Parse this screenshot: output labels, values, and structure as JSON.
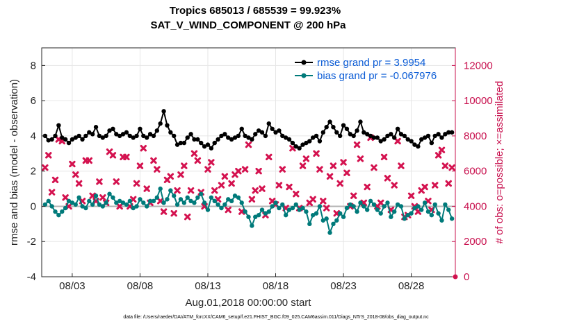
{
  "chart_data": {
    "type": "line",
    "title": "Tropics 685013 / 685539 = 99.923%",
    "subtitle": "SAT_V_WIND_COMPONENT @ 200 hPa",
    "xlabel": "Aug.01,2018 00:00:00 start",
    "ylabel": "rmse and bias (model - observation)",
    "ylabel_right": "# of obs: o=possible; ×=assimilated",
    "footnote": "data file: /Users/raeder/DAI/ATM_forcXX/CAM6_setup/f.e21.FHIST_BGC.f09_025.CAM6assim.011/Diags_NTrS_2018-08/obs_diag_output.nc",
    "xlim": [
      0.75,
      31.25
    ],
    "ylim": [
      -4,
      9
    ],
    "ylim_right": [
      0,
      13000
    ],
    "x_ticks": [
      3,
      8,
      13,
      18,
      23,
      28
    ],
    "x_tick_labels": [
      "08/03",
      "08/08",
      "08/13",
      "08/18",
      "08/23",
      "08/28"
    ],
    "y_ticks": [
      -4,
      -2,
      0,
      2,
      4,
      6,
      8
    ],
    "y_ticks_right": [
      0,
      2000,
      4000,
      6000,
      8000,
      10000,
      12000
    ],
    "grid": true,
    "legend_position": "top-right",
    "colors": {
      "rmse": "#000000",
      "bias": "#007a7a",
      "obs": "#d4124f",
      "zero_line": "#b3b3b3",
      "legend_text": "#0b5cd6",
      "right_axis": "#c8104e"
    },
    "series": [
      {
        "name": "rmse grand pr = 3.9954",
        "axis": "left",
        "x": [
          1.0,
          1.25,
          1.5,
          1.75,
          2.0,
          2.25,
          2.5,
          2.75,
          3.0,
          3.25,
          3.5,
          3.75,
          4.0,
          4.25,
          4.5,
          4.75,
          5.0,
          5.25,
          5.5,
          5.75,
          6.0,
          6.25,
          6.5,
          6.75,
          7.0,
          7.25,
          7.5,
          7.75,
          8.0,
          8.25,
          8.5,
          8.75,
          9.0,
          9.25,
          9.5,
          9.75,
          10.0,
          10.25,
          10.5,
          10.75,
          11.0,
          11.25,
          11.5,
          11.75,
          12.0,
          12.25,
          12.5,
          12.75,
          13.0,
          13.25,
          13.5,
          13.75,
          14.0,
          14.25,
          14.5,
          14.75,
          15.0,
          15.25,
          15.5,
          15.75,
          16.0,
          16.25,
          16.5,
          16.75,
          17.0,
          17.25,
          17.5,
          17.75,
          18.0,
          18.25,
          18.5,
          18.75,
          19.0,
          19.25,
          19.5,
          19.75,
          20.0,
          20.25,
          20.5,
          20.75,
          21.0,
          21.25,
          21.5,
          21.75,
          22.0,
          22.25,
          22.5,
          22.75,
          23.0,
          23.25,
          23.5,
          23.75,
          24.0,
          24.25,
          24.5,
          24.75,
          25.0,
          25.25,
          25.5,
          25.75,
          26.0,
          26.25,
          26.5,
          26.75,
          27.0,
          27.25,
          27.5,
          27.75,
          28.0,
          28.25,
          28.5,
          28.75,
          29.0,
          29.25,
          29.5,
          29.75,
          30.0,
          30.25,
          30.5,
          30.75,
          31.0
        ],
        "values": [
          4.0,
          3.75,
          3.8,
          4.0,
          4.6,
          3.9,
          3.8,
          3.6,
          3.8,
          3.9,
          4.0,
          3.8,
          4.0,
          4.2,
          4.1,
          4.5,
          4.0,
          3.9,
          4.0,
          4.3,
          4.4,
          4.1,
          4.0,
          4.1,
          4.2,
          4.0,
          3.9,
          4.0,
          4.4,
          4.0,
          3.9,
          4.1,
          4.0,
          4.3,
          4.7,
          5.4,
          4.6,
          4.2,
          4.0,
          3.5,
          3.6,
          3.6,
          3.9,
          4.1,
          3.8,
          3.8,
          3.6,
          3.4,
          3.5,
          3.3,
          3.6,
          3.8,
          4.0,
          4.1,
          3.9,
          3.8,
          3.9,
          4.0,
          4.4,
          4.0,
          3.9,
          3.8,
          4.1,
          4.3,
          4.2,
          4.0,
          4.7,
          4.4,
          4.2,
          4.3,
          4.0,
          3.9,
          3.8,
          3.6,
          3.4,
          3.3,
          3.5,
          3.6,
          3.7,
          3.9,
          4.0,
          3.7,
          4.2,
          4.5,
          4.8,
          4.5,
          4.2,
          4.0,
          4.6,
          4.4,
          4.1,
          4.0,
          4.3,
          4.8,
          4.2,
          4.1,
          4.0,
          3.9,
          3.9,
          3.7,
          3.8,
          4.0,
          4.1,
          3.9,
          4.4,
          4.1,
          4.0,
          3.8,
          3.7,
          3.5,
          3.4,
          3.8,
          3.9,
          4.0,
          3.6,
          4.0,
          4.1,
          3.9,
          4.1,
          4.2,
          4.2
        ]
      },
      {
        "name": "bias grand pr = -0.067976",
        "axis": "left",
        "x": [
          1.0,
          1.25,
          1.5,
          1.75,
          2.0,
          2.25,
          2.5,
          2.75,
          3.0,
          3.25,
          3.5,
          3.75,
          4.0,
          4.25,
          4.5,
          4.75,
          5.0,
          5.25,
          5.5,
          5.75,
          6.0,
          6.25,
          6.5,
          6.75,
          7.0,
          7.25,
          7.5,
          7.75,
          8.0,
          8.25,
          8.5,
          8.75,
          9.0,
          9.25,
          9.5,
          9.75,
          10.0,
          10.25,
          10.5,
          10.75,
          11.0,
          11.25,
          11.5,
          11.75,
          12.0,
          12.25,
          12.5,
          12.75,
          13.0,
          13.25,
          13.5,
          13.75,
          14.0,
          14.25,
          14.5,
          14.75,
          15.0,
          15.25,
          15.5,
          15.75,
          16.0,
          16.25,
          16.5,
          16.75,
          17.0,
          17.25,
          17.5,
          17.75,
          18.0,
          18.25,
          18.5,
          18.75,
          19.0,
          19.25,
          19.5,
          19.75,
          20.0,
          20.25,
          20.5,
          20.75,
          21.0,
          21.25,
          21.5,
          21.75,
          22.0,
          22.25,
          22.5,
          22.75,
          23.0,
          23.25,
          23.5,
          23.75,
          24.0,
          24.25,
          24.5,
          24.75,
          25.0,
          25.25,
          25.5,
          25.75,
          26.0,
          26.25,
          26.5,
          26.75,
          27.0,
          27.25,
          27.5,
          27.75,
          28.0,
          28.25,
          28.5,
          28.75,
          29.0,
          29.25,
          29.5,
          29.75,
          30.0,
          30.25,
          30.5,
          30.75,
          31.0
        ],
        "values": [
          0.1,
          0.3,
          0.0,
          -0.3,
          -0.5,
          -0.3,
          -0.1,
          0.3,
          0.2,
          0.1,
          0.5,
          0.0,
          -0.1,
          0.3,
          0.1,
          0.6,
          0.1,
          0.0,
          0.2,
          0.7,
          0.5,
          0.2,
          0.3,
          0.2,
          0.1,
          0.3,
          -0.1,
          0.0,
          0.4,
          0.2,
          0.0,
          0.3,
          0.3,
          0.5,
          1.0,
          0.2,
          0.4,
          0.9,
          0.6,
          0.1,
          0.4,
          0.2,
          0.5,
          0.3,
          0.2,
          0.5,
          0.7,
          0.2,
          -0.2,
          0.5,
          0.3,
          0.1,
          -0.1,
          0.1,
          0.4,
          0.3,
          0.6,
          0.5,
          0.2,
          -0.3,
          -0.6,
          -1.1,
          -0.6,
          -0.5,
          -0.2,
          -0.4,
          -0.3,
          0.0,
          0.2,
          -0.1,
          0.1,
          -0.5,
          -0.2,
          -0.1,
          0.1,
          -0.2,
          -0.1,
          -0.3,
          -1.0,
          -0.5,
          -0.4,
          0.0,
          -0.8,
          -0.7,
          -1.5,
          -1.0,
          -0.8,
          -0.4,
          -0.6,
          -0.1,
          0.1,
          0.0,
          -0.3,
          0.2,
          0.0,
          -0.2,
          0.3,
          0.1,
          -0.2,
          -0.4,
          0.0,
          0.2,
          -0.6,
          -0.3,
          0.1,
          0.0,
          -0.7,
          -0.5,
          -0.4,
          -0.1,
          0.0,
          -0.2,
          0.2,
          -0.3,
          -0.5,
          0.1,
          -0.4,
          -0.8,
          0.1,
          -0.2,
          -0.7
        ]
      },
      {
        "name": "# of obs",
        "axis": "right",
        "type": "scatter",
        "x": [
          1.0,
          1.25,
          1.5,
          1.75,
          2.0,
          2.25,
          2.5,
          2.75,
          3.0,
          3.25,
          3.5,
          3.75,
          4.0,
          4.25,
          4.5,
          4.75,
          5.0,
          5.25,
          5.5,
          5.75,
          6.0,
          6.25,
          6.5,
          6.75,
          7.0,
          7.25,
          7.5,
          7.75,
          8.0,
          8.25,
          8.5,
          8.75,
          9.0,
          9.25,
          9.5,
          9.75,
          10.0,
          10.25,
          10.5,
          10.75,
          11.0,
          11.25,
          11.5,
          11.75,
          12.0,
          12.25,
          12.5,
          12.75,
          13.0,
          13.25,
          13.5,
          13.75,
          14.0,
          14.25,
          14.5,
          14.75,
          15.0,
          15.25,
          15.5,
          15.75,
          16.0,
          16.25,
          16.5,
          16.75,
          17.0,
          17.25,
          17.5,
          17.75,
          18.0,
          18.25,
          18.5,
          18.75,
          19.0,
          19.25,
          19.5,
          19.75,
          20.0,
          20.25,
          20.5,
          20.75,
          21.0,
          21.25,
          21.5,
          21.75,
          22.0,
          22.25,
          22.5,
          22.75,
          23.0,
          23.25,
          23.5,
          23.75,
          24.0,
          24.25,
          24.5,
          24.75,
          25.0,
          25.25,
          25.5,
          25.75,
          26.0,
          26.25,
          26.5,
          26.75,
          27.0,
          27.25,
          27.5,
          27.75,
          28.0,
          28.25,
          28.5,
          28.75,
          29.0,
          29.25,
          29.5,
          29.75,
          30.0,
          30.25,
          30.5,
          30.75,
          31.0
        ],
        "values": [
          6200,
          6900,
          4800,
          5500,
          7800,
          7700,
          4500,
          4000,
          6400,
          5800,
          5300,
          4300,
          6600,
          6600,
          4600,
          4300,
          5400,
          4500,
          4200,
          7100,
          6900,
          5400,
          4000,
          6800,
          6800,
          4000,
          4400,
          5300,
          6300,
          7300,
          5000,
          4200,
          6600,
          6100,
          4300,
          3700,
          5500,
          5700,
          3600,
          4900,
          5800,
          6300,
          3400,
          4900,
          7000,
          6600,
          4800,
          4000,
          6100,
          6500,
          4900,
          4400,
          5200,
          5700,
          3800,
          5300,
          5800,
          6000,
          3700,
          6100,
          7500,
          4400,
          4900,
          6000,
          5000,
          3500,
          6800,
          4300,
          4100,
          5200,
          6100,
          3900,
          5100,
          7300,
          4700,
          3900,
          6300,
          6700,
          4200,
          4400,
          7000,
          6100,
          4300,
          3900,
          5700,
          6300,
          3600,
          5300,
          6500,
          5900,
          4000,
          4600,
          7500,
          6700,
          4200,
          5100,
          7900,
          6200,
          4000,
          4200,
          6800,
          5600,
          3800,
          5200,
          7700,
          6300,
          3400,
          3500,
          4600,
          4000,
          3700,
          4900,
          5100,
          4300,
          3800,
          5200,
          6900,
          7200,
          6300,
          5300,
          6200
        ]
      }
    ]
  }
}
